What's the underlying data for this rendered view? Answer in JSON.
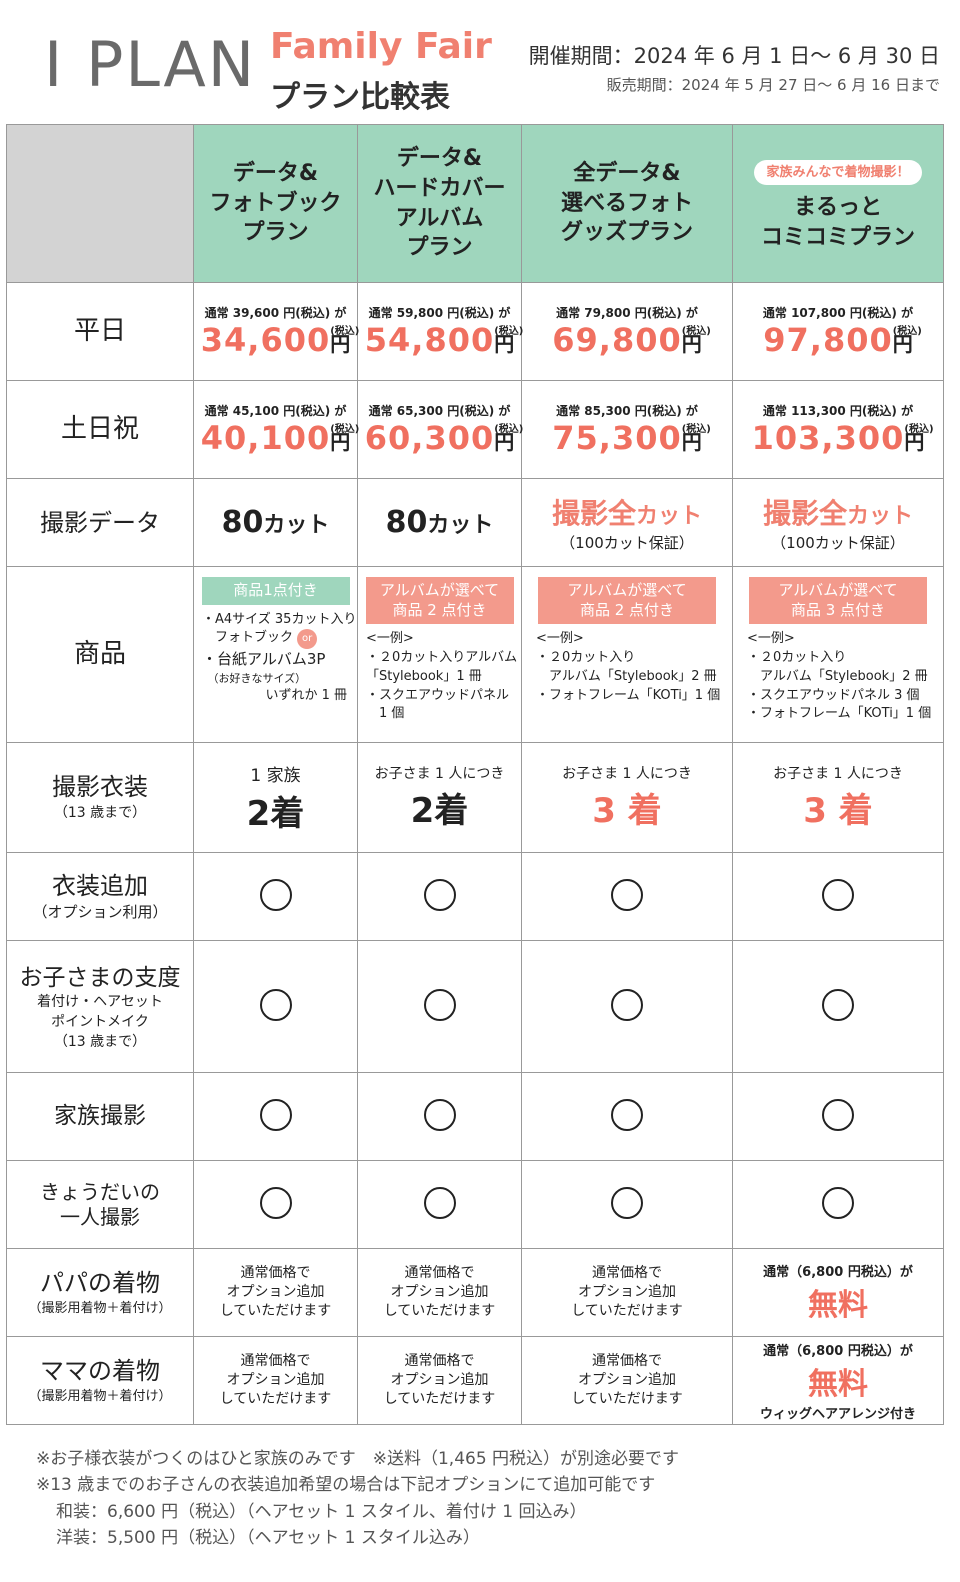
{
  "header": {
    "logo": "I PLAN",
    "title": "Family Fair",
    "subtitle": "プラン比較表",
    "period_main": "開催期間：2024 年 6 月 1 日〜 6 月 30 日",
    "period_sale": "販売期間：2024 年 5 月 27 日〜 6 月 16 日まで"
  },
  "plans": [
    {
      "name": "データ&\nフォトブック\nプラン"
    },
    {
      "name": "データ&\nハードカバー\nアルバム\nプラン"
    },
    {
      "name": "全データ&\n選べるフォト\nグッズプラン"
    },
    {
      "name": "まるっと\nコミコミプラン",
      "badge": "家族みんなで着物撮影！"
    }
  ],
  "rows": {
    "weekday": {
      "label": "平日"
    },
    "weekend": {
      "label": "土日祝"
    },
    "data": {
      "label": "撮影データ"
    },
    "goods": {
      "label": "商品"
    },
    "costume": {
      "label": "撮影衣装",
      "sub": "（13 歳まで）"
    },
    "costume_add": {
      "label": "衣装追加",
      "sub": "（オプション利用）"
    },
    "prep": {
      "label": "お子さまの支度",
      "sub": "着付け・ヘアセット\nポイントメイク\n（13 歳まで）"
    },
    "family": {
      "label": "家族撮影"
    },
    "siblings": {
      "label": "きょうだいの\n一人撮影"
    },
    "papa": {
      "label": "パパの着物",
      "sub": "（撮影用着物＋着付け）"
    },
    "mama": {
      "label": "ママの着物",
      "sub": "（撮影用着物＋着付け）"
    }
  },
  "prices": {
    "tax_label": "(税込)",
    "unit": "円",
    "weekday": [
      {
        "note": "通常 39,600 円(税込) が",
        "price": "34,600"
      },
      {
        "note": "通常 59,800 円(税込) が",
        "price": "54,800"
      },
      {
        "note": "通常 79,800 円(税込) が",
        "price": "69,800"
      },
      {
        "note": "通常 107,800 円(税込) が",
        "price": "97,800"
      }
    ],
    "weekend": [
      {
        "note": "通常 45,100 円(税込) が",
        "price": "40,100"
      },
      {
        "note": "通常 65,300 円(税込) が",
        "price": "60,300"
      },
      {
        "note": "通常 85,300 円(税込) が",
        "price": "75,300"
      },
      {
        "note": "通常 113,300 円(税込) が",
        "price": "103,300"
      }
    ]
  },
  "data_cells": {
    "p1_num": "80",
    "p1_unit": "カット",
    "p2_num": "80",
    "p2_unit": "カット",
    "p3_main": "撮影全",
    "p3_unit": "カット",
    "p3_guar": "（100カット保証）",
    "p4_main": "撮影全",
    "p4_unit": "カット",
    "p4_guar": "（100カット保証）"
  },
  "goods": {
    "p1_badge": "商品1点付き",
    "p1_l1": "・A4サイズ 35カット入り",
    "p1_l2": "　フォトブック",
    "p1_or": "or",
    "p1_l3": "・台紙アルバム3P",
    "p1_l4": "　（お好きなサイズ）",
    "p1_l5": "いずれか 1 冊",
    "p2_badge": "アルバムが選べて\n商品 2 点付き",
    "p2_l1": "<一例>",
    "p2_l2": "・２0カット入りアルバム",
    "p2_l3": "「Stylebook」1 冊",
    "p2_l4": "・スクエアウッドパネル",
    "p2_l5": "　1 個",
    "p3_badge": "アルバムが選べて\n商品 2 点付き",
    "p3_l1": "<一例>",
    "p3_l2": "・２0カット入り",
    "p3_l3": "　アルバム「Stylebook」2 冊",
    "p3_l4": "・フォトフレーム「KOTi」1 個",
    "p4_badge": "アルバムが選べて\n商品 3 点付き",
    "p4_l1": "<一例>",
    "p4_l2": "・２0カット入り",
    "p4_l3": "　アルバム「Stylebook」2 冊",
    "p4_l4": "・スクエアウッドパネル 3 個",
    "p4_l5": "・フォトフレーム「KOTi」1 個"
  },
  "costume": {
    "p1_note": "1 家族",
    "p1_num": "2着",
    "p2_note": "お子さま 1 人につき",
    "p2_num": "2着",
    "p3_note": "お子さま 1 人につき",
    "p3_num": "3 着",
    "p4_note": "お子さま 1 人につき",
    "p4_num": "3 着"
  },
  "options": {
    "standard": "通常価格で\nオプション追加\nしていただけます",
    "free_note": "通常（6,800 円税込）が",
    "free": "無料",
    "mama_extra": "ウィッグヘアアレンジ付き"
  },
  "footer": {
    "l1": "※お子様衣装がつくのはひと家族のみです　※送料（1,465 円税込）が別途必要です",
    "l2": "※13 歳までのお子さんの衣装追加希望の場合は下記オプションにて追加可能です",
    "l3": "和装：6,600 円（税込）（ヘアセット 1 スタイル、着付け 1 回込み）",
    "l4": "洋装：5,500 円（税込）（ヘアセット 1 スタイル込み）"
  }
}
